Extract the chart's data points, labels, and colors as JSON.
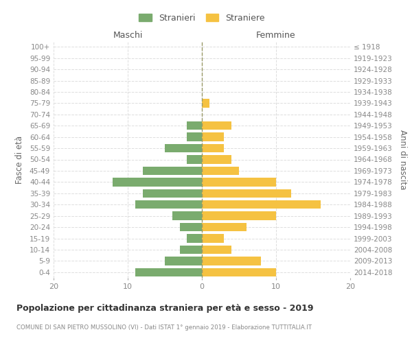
{
  "age_groups": [
    "0-4",
    "5-9",
    "10-14",
    "15-19",
    "20-24",
    "25-29",
    "30-34",
    "35-39",
    "40-44",
    "45-49",
    "50-54",
    "55-59",
    "60-64",
    "65-69",
    "70-74",
    "75-79",
    "80-84",
    "85-89",
    "90-94",
    "95-99",
    "100+"
  ],
  "birth_years": [
    "2014-2018",
    "2009-2013",
    "2004-2008",
    "1999-2003",
    "1994-1998",
    "1989-1993",
    "1984-1988",
    "1979-1983",
    "1974-1978",
    "1969-1973",
    "1964-1968",
    "1959-1963",
    "1954-1958",
    "1949-1953",
    "1944-1948",
    "1939-1943",
    "1934-1938",
    "1929-1933",
    "1924-1928",
    "1919-1923",
    "≤ 1918"
  ],
  "maschi": [
    9,
    5,
    3,
    2,
    3,
    4,
    9,
    8,
    12,
    8,
    2,
    5,
    2,
    2,
    0,
    0,
    0,
    0,
    0,
    0,
    0
  ],
  "femmine": [
    10,
    8,
    4,
    3,
    6,
    10,
    16,
    12,
    10,
    5,
    4,
    3,
    3,
    4,
    0,
    1,
    0,
    0,
    0,
    0,
    0
  ],
  "maschi_color": "#7aab6e",
  "femmine_color": "#f5c242",
  "title": "Popolazione per cittadinanza straniera per età e sesso - 2019",
  "subtitle": "COMUNE DI SAN PIETRO MUSSOLINO (VI) - Dati ISTAT 1° gennaio 2019 - Elaborazione TUTTITALIA.IT",
  "xlabel_left": "Maschi",
  "xlabel_right": "Femmine",
  "ylabel_left": "Fasce di età",
  "ylabel_right": "Anni di nascita",
  "legend_maschi": "Stranieri",
  "legend_femmine": "Straniere",
  "xlim": 20,
  "background_color": "#ffffff",
  "grid_color": "#dddddd",
  "bar_height": 0.75
}
